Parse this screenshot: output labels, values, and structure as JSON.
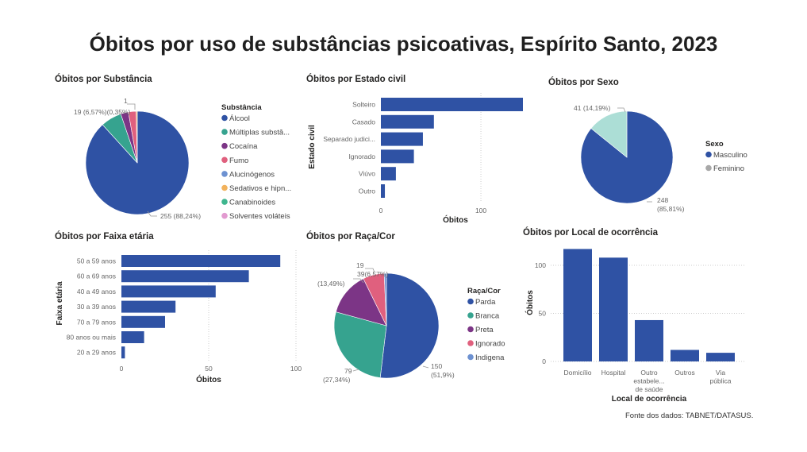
{
  "title": "Óbitos por uso de substâncias psicoativas, Espírito Santo, 2023",
  "source": "Fonte dos dados: TABNET/DATASUS.",
  "chart_data": [
    {
      "id": "substancia",
      "type": "pie",
      "title": "Óbitos por Substância",
      "legend_title": "Substância",
      "legend_position": "right",
      "categories": [
        "Álcool",
        "Múltiplas substâ...",
        "Cocaína",
        "Fumo",
        "Alucinógenos",
        "Sedativos e hipn...",
        "Canabinoides",
        "Solventes voláteis"
      ],
      "values": [
        255,
        19,
        7,
        7,
        0,
        1,
        0,
        0
      ],
      "colors": [
        "#2f52a4",
        "#36a38f",
        "#7c3586",
        "#e0607e",
        "#6d91d1",
        "#f2b25c",
        "#3fb68e",
        "#e29ad0"
      ],
      "data_labels": [
        "255 (88,24%)",
        "19 (6,57%)",
        "",
        "",
        "",
        "1 (0,35%)",
        "",
        ""
      ]
    },
    {
      "id": "estado_civil",
      "type": "bar",
      "orientation": "horizontal",
      "title": "Óbitos por Estado civil",
      "xlabel": "Óbitos",
      "ylabel": "Estado civil",
      "categories": [
        "Solteiro",
        "Casado",
        "Separado judici...",
        "Ignorado",
        "Viúvo",
        "Outro"
      ],
      "values": [
        142,
        53,
        42,
        33,
        15,
        4
      ],
      "xlim": [
        0,
        142
      ],
      "xticks": [
        0,
        100
      ],
      "grid": true,
      "color": "#2f52a4"
    },
    {
      "id": "sexo",
      "type": "pie",
      "title": "Óbitos por Sexo",
      "legend_title": "Sexo",
      "legend_position": "right",
      "categories": [
        "Masculino",
        "Feminino"
      ],
      "values": [
        248,
        41
      ],
      "colors": [
        "#2f52a4",
        "#acded6"
      ],
      "legend_colors": [
        "#2f52a4",
        "#a8a8a8"
      ],
      "data_labels": [
        "248 (85,81%)",
        "41 (14,19%)"
      ]
    },
    {
      "id": "faixa_etaria",
      "type": "bar",
      "orientation": "horizontal",
      "title": "Óbitos por Faixa etária",
      "xlabel": "Óbitos",
      "ylabel": "Faixa etária",
      "categories": [
        "50 a 59 anos",
        "60 a 69 anos",
        "40 a 49 anos",
        "30 a 39 anos",
        "70 a 79 anos",
        "80 anos ou mais",
        "20 a 29 anos"
      ],
      "values": [
        91,
        73,
        54,
        31,
        25,
        13,
        2
      ],
      "xlim": [
        0,
        100
      ],
      "xticks": [
        0,
        50,
        100
      ],
      "grid": true,
      "color": "#2f52a4"
    },
    {
      "id": "raca_cor",
      "type": "pie",
      "title": "Óbitos por Raça/Cor",
      "legend_title": "Raça/Cor",
      "legend_position": "right",
      "categories": [
        "Parda",
        "Branca",
        "Preta",
        "Ignorado",
        "Indigena"
      ],
      "values": [
        150,
        79,
        39,
        19,
        2
      ],
      "colors": [
        "#2f52a4",
        "#36a38f",
        "#7c3586",
        "#e0607e",
        "#6d91d1"
      ],
      "data_labels": [
        "150 (51,9%)",
        "79 (27,34%)",
        "39 (13,49%)",
        "19 (6,57%)",
        ""
      ]
    },
    {
      "id": "local",
      "type": "bar",
      "orientation": "vertical",
      "title": "Óbitos por Local de ocorrência",
      "xlabel": "Local de ocorrência",
      "ylabel": "Óbitos",
      "categories": [
        "Domicílio",
        "Hospital",
        "Outro estabele... de saúde",
        "Outros",
        "Via pública"
      ],
      "category_lines": [
        [
          "Domicílio"
        ],
        [
          "Hospital"
        ],
        [
          "Outro",
          "estabele...",
          "de saúde"
        ],
        [
          "Outros"
        ],
        [
          "Via",
          "pública"
        ]
      ],
      "values": [
        117,
        108,
        43,
        12,
        9
      ],
      "ylim": [
        0,
        117
      ],
      "yticks": [
        0,
        50,
        100
      ],
      "grid": true,
      "color": "#2f52a4"
    }
  ]
}
